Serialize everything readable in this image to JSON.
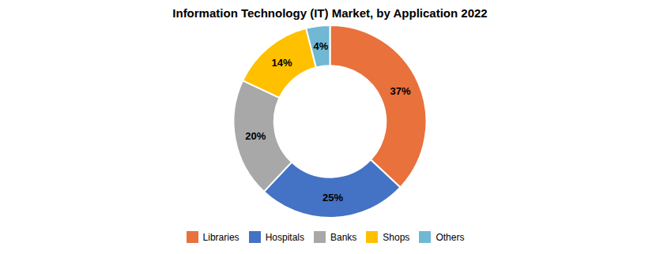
{
  "chart_data": {
    "type": "donut",
    "title": "Information Technology (IT) Market, by Application 2022",
    "categories": [
      "Libraries",
      "Hospitals",
      "Banks",
      "Shops",
      "Others"
    ],
    "values": [
      37,
      25,
      20,
      14,
      4
    ],
    "value_labels": [
      "37%",
      "25%",
      "20%",
      "14%",
      "4%"
    ],
    "colors": [
      "#E8713C",
      "#4472C4",
      "#A8A8A8",
      "#FFC000",
      "#70B8D4"
    ],
    "data_labels": true,
    "legend": "bottom"
  }
}
